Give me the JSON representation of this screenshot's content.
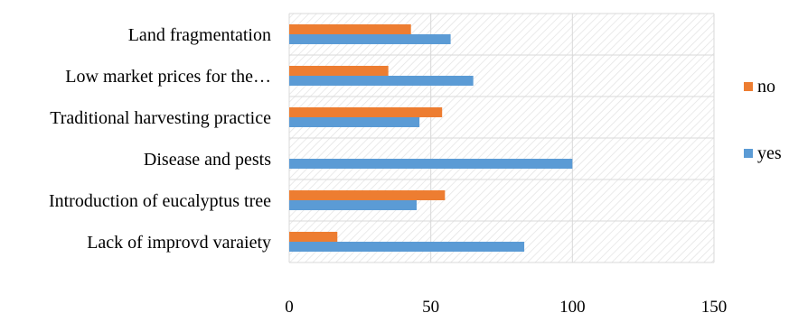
{
  "chart_data": {
    "type": "bar",
    "orientation": "horizontal",
    "categories": [
      "Land fragmentation",
      "Low market prices for the…",
      "Traditional harvesting practice",
      "Disease and pests",
      "Introduction of eucalyptus tree",
      "Lack of improvd varaiety"
    ],
    "series": [
      {
        "name": "no",
        "color": "#ED7D31",
        "values": [
          43,
          35,
          54,
          0,
          55,
          17
        ]
      },
      {
        "name": "yes",
        "color": "#5B9BD5",
        "values": [
          57,
          65,
          46,
          100,
          45,
          83
        ]
      }
    ],
    "x_ticks": [
      "0",
      "50",
      "100",
      "150"
    ],
    "xlim": [
      0,
      150
    ],
    "grid": true,
    "plot_area_pattern": "diagonal-hatch",
    "legend_position": "right",
    "legend": [
      {
        "name": "no",
        "color": "#ED7D31"
      },
      {
        "name": "yes",
        "color": "#5B9BD5"
      }
    ]
  }
}
